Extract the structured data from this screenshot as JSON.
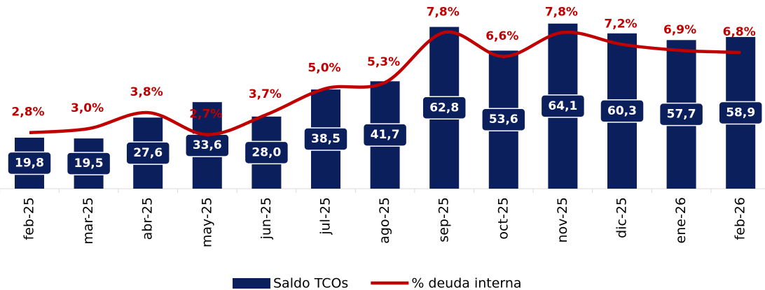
{
  "chart_data": {
    "type": "bar",
    "categories": [
      "feb-25",
      "mar-25",
      "abr-25",
      "may-25",
      "jun-25",
      "jul-25",
      "ago-25",
      "sep-25",
      "oct-25",
      "nov-25",
      "dic-25",
      "ene-26",
      "feb-26"
    ],
    "series": [
      {
        "name": "Saldo TCOs",
        "type": "bar",
        "color": "#0b1f5c",
        "values": [
          19.8,
          19.5,
          27.6,
          33.6,
          28.0,
          38.5,
          41.7,
          62.8,
          53.6,
          64.1,
          60.3,
          57.7,
          58.9
        ],
        "value_labels": [
          "19,8",
          "19,5",
          "27,6",
          "33,6",
          "28,0",
          "38,5",
          "41,7",
          "62,8",
          "53,6",
          "64,1",
          "60,3",
          "57,7",
          "58,9"
        ]
      },
      {
        "name": "% deuda interna",
        "type": "line",
        "axis": "y2",
        "color": "#c00000",
        "values": [
          2.8,
          3.0,
          3.8,
          2.7,
          3.7,
          5.0,
          5.3,
          7.8,
          6.6,
          7.8,
          7.2,
          6.9,
          6.8
        ],
        "value_labels": [
          "2,8%",
          "3,0%",
          "3,8%",
          "2,7%",
          "3,7%",
          "5,0%",
          "5,3%",
          "7,8%",
          "6,6%",
          "7,8%",
          "7,2%",
          "6,9%",
          "6,8%"
        ]
      }
    ],
    "ylim": [
      0,
      70
    ],
    "y2lim": [
      0,
      9
    ],
    "legend": "bottom"
  }
}
